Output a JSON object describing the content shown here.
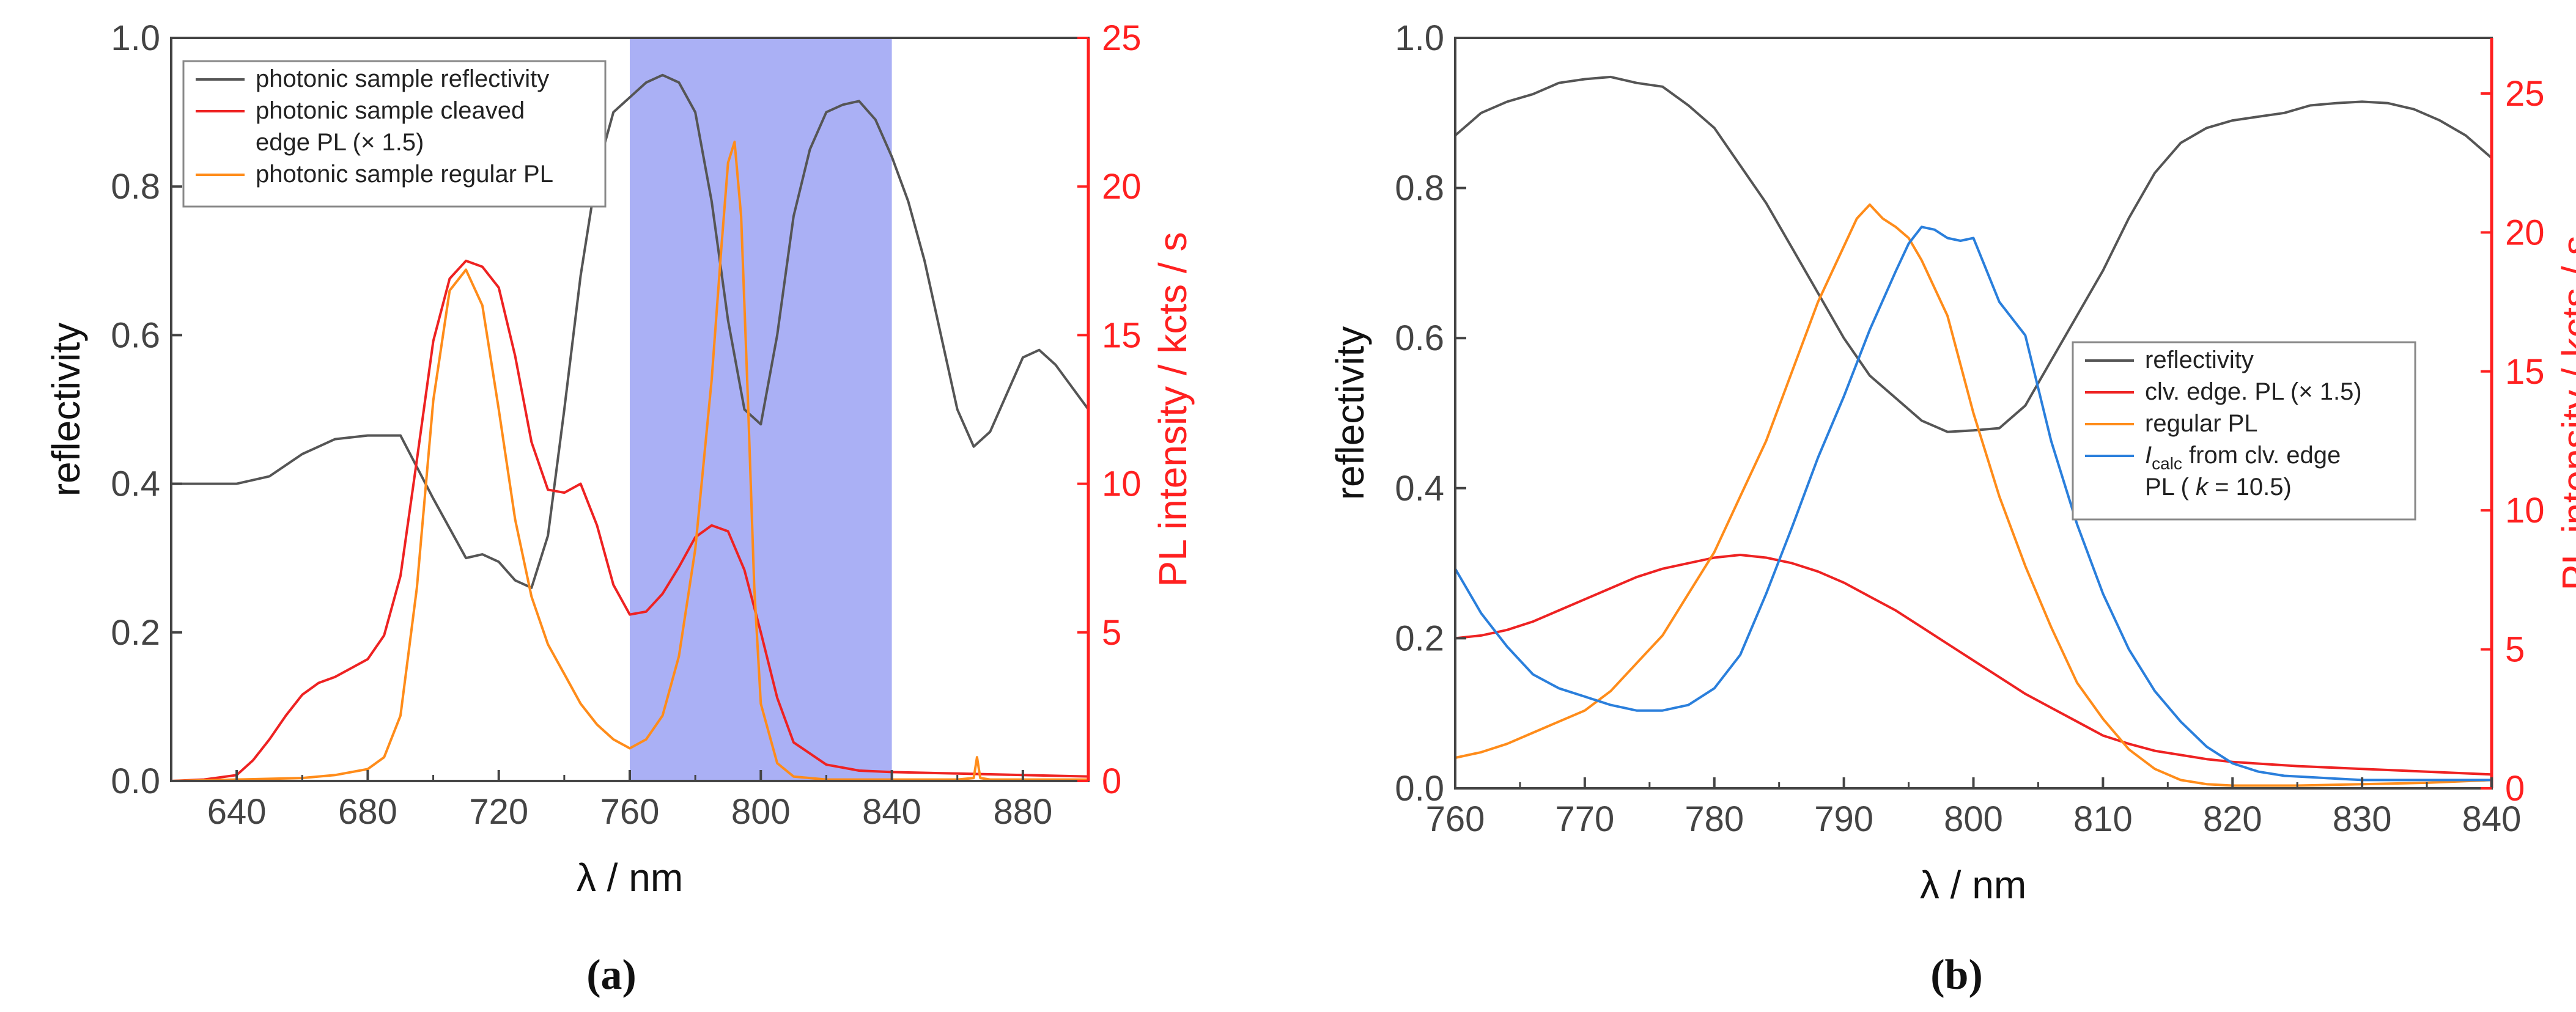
{
  "chart_data": [
    {
      "id": "a",
      "type": "line",
      "caption": "(a)",
      "xlabel": "λ / nm",
      "ylabel": "reflectivity",
      "ylabel_right": "PL intensity / kcts / s",
      "xlim": [
        620,
        900
      ],
      "ylim": [
        0,
        1.0
      ],
      "ylim_right": [
        0,
        25
      ],
      "x_ticks": [
        640,
        680,
        720,
        760,
        800,
        840,
        880
      ],
      "y_ticks": [
        "0.0",
        "0.2",
        "0.4",
        "0.6",
        "0.8",
        "1.0"
      ],
      "y_right_ticks": [
        "0",
        "5",
        "10",
        "15",
        "20",
        "25"
      ],
      "highlight_band": {
        "x_range": [
          760,
          840
        ],
        "color": "#aab0f5"
      },
      "legend": [
        {
          "lines": [
            "photonic sample reflectivity"
          ],
          "color": "#555555"
        },
        {
          "lines": [
            "photonic sample cleaved",
            "edge PL (× 1.5)"
          ],
          "color": "#ee2222"
        },
        {
          "lines": [
            "photonic sample regular PL"
          ],
          "color": "#ff8c1a"
        }
      ],
      "series": [
        {
          "name": "photonic sample reflectivity",
          "axis": "left",
          "color": "#555555",
          "x": [
            620,
            630,
            640,
            650,
            660,
            670,
            680,
            690,
            700,
            705,
            710,
            715,
            720,
            725,
            730,
            735,
            740,
            745,
            750,
            755,
            760,
            765,
            770,
            775,
            780,
            785,
            790,
            795,
            800,
            805,
            810,
            815,
            820,
            825,
            830,
            835,
            840,
            845,
            850,
            855,
            860,
            865,
            870,
            875,
            880,
            885,
            890,
            895,
            900
          ],
          "y": [
            0.4,
            0.4,
            0.4,
            0.41,
            0.44,
            0.46,
            0.465,
            0.465,
            0.38,
            0.34,
            0.3,
            0.305,
            0.295,
            0.27,
            0.26,
            0.33,
            0.5,
            0.68,
            0.82,
            0.9,
            0.92,
            0.94,
            0.95,
            0.94,
            0.9,
            0.78,
            0.62,
            0.5,
            0.48,
            0.6,
            0.76,
            0.85,
            0.9,
            0.91,
            0.915,
            0.89,
            0.84,
            0.78,
            0.7,
            0.6,
            0.5,
            0.45,
            0.47,
            0.52,
            0.57,
            0.58,
            0.56,
            0.53,
            0.5
          ]
        },
        {
          "name": "photonic sample cleaved edge PL (× 1.5)",
          "axis": "right",
          "color": "#ee2222",
          "x": [
            620,
            630,
            640,
            645,
            650,
            655,
            660,
            665,
            670,
            675,
            680,
            685,
            690,
            695,
            700,
            705,
            710,
            715,
            720,
            725,
            730,
            735,
            740,
            745,
            750,
            755,
            760,
            765,
            770,
            775,
            780,
            785,
            790,
            795,
            800,
            805,
            810,
            820,
            830,
            840,
            860,
            880,
            900
          ],
          "y": [
            0,
            0.05,
            0.2,
            0.7,
            1.4,
            2.2,
            2.9,
            3.3,
            3.5,
            3.8,
            4.1,
            4.9,
            6.9,
            10.8,
            14.8,
            16.9,
            17.5,
            17.3,
            16.6,
            14.3,
            11.4,
            9.8,
            9.7,
            10.0,
            8.6,
            6.6,
            5.6,
            5.7,
            6.3,
            7.2,
            8.2,
            8.6,
            8.4,
            7.1,
            5.0,
            2.8,
            1.3,
            0.55,
            0.35,
            0.3,
            0.25,
            0.2,
            0.15
          ]
        },
        {
          "name": "photonic sample regular PL",
          "axis": "right",
          "color": "#ff8c1a",
          "x": [
            620,
            640,
            660,
            670,
            680,
            685,
            690,
            695,
            700,
            705,
            710,
            715,
            720,
            725,
            730,
            735,
            740,
            745,
            750,
            755,
            760,
            765,
            770,
            775,
            780,
            785,
            788,
            790,
            792,
            794,
            796,
            798,
            800,
            805,
            810,
            820,
            840,
            860,
            865,
            866,
            867,
            870,
            880,
            900
          ],
          "y": [
            0,
            0.05,
            0.1,
            0.2,
            0.4,
            0.8,
            2.2,
            6.5,
            12.8,
            16.5,
            17.2,
            16.0,
            12.5,
            8.8,
            6.2,
            4.6,
            3.6,
            2.6,
            1.9,
            1.4,
            1.1,
            1.4,
            2.2,
            4.2,
            7.8,
            13.5,
            18.0,
            20.8,
            21.5,
            19.0,
            13.0,
            6.5,
            2.6,
            0.6,
            0.15,
            0.05,
            0.05,
            0.05,
            0.1,
            0.8,
            0.1,
            0.05,
            0.05,
            0.05
          ]
        }
      ]
    },
    {
      "id": "b",
      "type": "line",
      "caption": "(b)",
      "xlabel": "λ / nm",
      "ylabel": "reflectivity",
      "ylabel_right": "PL intensity / kcts / s",
      "xlim": [
        760,
        840
      ],
      "ylim": [
        0,
        1.0
      ],
      "ylim_right": [
        0,
        27
      ],
      "x_ticks": [
        760,
        770,
        780,
        790,
        800,
        810,
        820,
        830,
        840
      ],
      "y_ticks": [
        "0.0",
        "0.2",
        "0.4",
        "0.6",
        "0.8",
        "1.0"
      ],
      "y_right_ticks": [
        "0",
        "5",
        "10",
        "15",
        "20",
        "25"
      ],
      "legend": [
        {
          "lines": [
            "reflectivity"
          ],
          "color": "#555555"
        },
        {
          "lines": [
            "clv. edge. PL (× 1.5)"
          ],
          "color": "#ee2222"
        },
        {
          "lines": [
            "regular PL"
          ],
          "color": "#ff8c1a"
        },
        {
          "lines": [
            "I_calc from clv. edge",
            "PL ( k = 10.5)"
          ],
          "color": "#2a7fdc"
        }
      ],
      "legend_rich": {
        "i": "I",
        "sub": "calc",
        "rest": " from clv. edge",
        "line2_pre": "PL ( ",
        "k": "k",
        "line2_post": " = 10.5)"
      },
      "series": [
        {
          "name": "reflectivity",
          "axis": "left",
          "color": "#555555",
          "x": [
            760,
            762,
            764,
            766,
            768,
            770,
            772,
            774,
            776,
            778,
            780,
            782,
            784,
            786,
            788,
            790,
            792,
            794,
            796,
            798,
            800,
            802,
            804,
            806,
            808,
            810,
            812,
            814,
            816,
            818,
            820,
            822,
            824,
            826,
            828,
            830,
            832,
            834,
            836,
            838,
            840
          ],
          "y": [
            0.87,
            0.9,
            0.915,
            0.925,
            0.94,
            0.945,
            0.948,
            0.94,
            0.935,
            0.91,
            0.88,
            0.83,
            0.78,
            0.72,
            0.66,
            0.6,
            0.55,
            0.52,
            0.49,
            0.475,
            0.477,
            0.48,
            0.51,
            0.57,
            0.63,
            0.69,
            0.76,
            0.82,
            0.86,
            0.88,
            0.89,
            0.895,
            0.9,
            0.91,
            0.913,
            0.915,
            0.913,
            0.905,
            0.89,
            0.87,
            0.84
          ]
        },
        {
          "name": "clv. edge. PL (× 1.5)",
          "axis": "right",
          "color": "#ee2222",
          "x": [
            760,
            762,
            764,
            766,
            768,
            770,
            772,
            774,
            776,
            778,
            780,
            782,
            784,
            786,
            788,
            790,
            792,
            794,
            796,
            798,
            800,
            802,
            804,
            806,
            808,
            810,
            812,
            814,
            816,
            818,
            820,
            825,
            830,
            835,
            840
          ],
          "y": [
            5.4,
            5.5,
            5.7,
            6.0,
            6.4,
            6.8,
            7.2,
            7.6,
            7.9,
            8.1,
            8.3,
            8.4,
            8.3,
            8.1,
            7.8,
            7.4,
            6.9,
            6.4,
            5.8,
            5.2,
            4.6,
            4.0,
            3.4,
            2.9,
            2.4,
            1.9,
            1.6,
            1.35,
            1.2,
            1.05,
            0.95,
            0.8,
            0.7,
            0.6,
            0.5
          ]
        },
        {
          "name": "regular PL",
          "axis": "right",
          "color": "#ff8c1a",
          "x": [
            760,
            762,
            764,
            766,
            768,
            770,
            772,
            774,
            776,
            778,
            780,
            782,
            784,
            786,
            788,
            790,
            791,
            792,
            793,
            794,
            795,
            796,
            798,
            800,
            802,
            804,
            806,
            808,
            810,
            812,
            814,
            816,
            818,
            820,
            822,
            825,
            830,
            835,
            840
          ],
          "y": [
            1.1,
            1.3,
            1.6,
            2.0,
            2.4,
            2.8,
            3.5,
            4.5,
            5.5,
            7.0,
            8.5,
            10.5,
            12.5,
            15.0,
            17.5,
            19.5,
            20.5,
            21.0,
            20.5,
            20.2,
            19.8,
            19.0,
            17.0,
            13.5,
            10.5,
            8.0,
            5.8,
            3.8,
            2.5,
            1.4,
            0.7,
            0.3,
            0.15,
            0.1,
            0.1,
            0.1,
            0.15,
            0.2,
            0.3
          ]
        },
        {
          "name": "I_calc from clv. edge PL (k = 10.5)",
          "axis": "right",
          "color": "#2a7fdc",
          "x": [
            760,
            762,
            764,
            766,
            768,
            770,
            772,
            774,
            776,
            778,
            780,
            782,
            784,
            786,
            788,
            790,
            792,
            794,
            795,
            796,
            797,
            798,
            799,
            800,
            802,
            804,
            806,
            808,
            810,
            812,
            814,
            816,
            818,
            820,
            822,
            824,
            826,
            828,
            830,
            835,
            840
          ],
          "y": [
            7.9,
            6.3,
            5.1,
            4.1,
            3.6,
            3.3,
            3.0,
            2.8,
            2.8,
            3.0,
            3.6,
            4.8,
            7.0,
            9.4,
            11.9,
            14.1,
            16.5,
            18.6,
            19.6,
            20.2,
            20.1,
            19.8,
            19.7,
            19.8,
            17.5,
            16.3,
            12.5,
            9.5,
            7.0,
            5.0,
            3.5,
            2.4,
            1.5,
            0.9,
            0.6,
            0.45,
            0.4,
            0.35,
            0.3,
            0.3,
            0.3
          ]
        }
      ]
    }
  ]
}
